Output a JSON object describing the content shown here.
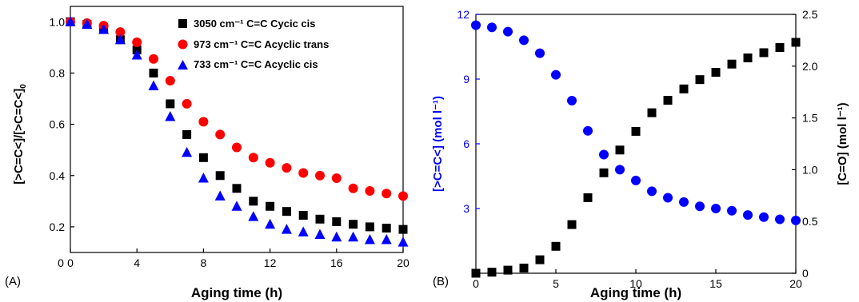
{
  "chart_data": [
    {
      "panel_label": "(A)",
      "type": "scatter",
      "xlabel": "Aging time (h)",
      "ylabel": "[>C=C<]/[>C=C<]",
      "ylabel_subscript": "0",
      "xlim": [
        0,
        20
      ],
      "ylim": [
        0.1,
        1.06
      ],
      "x_ticks": [
        "0",
        "4",
        "8",
        "12",
        "16",
        "20"
      ],
      "y_ticks": [
        "0.2",
        "0.4",
        "0.6",
        "0.8",
        "1.0"
      ],
      "grid": false,
      "legend_position": "top-right",
      "series": [
        {
          "name": "3050 cm⁻¹ C=C Cycic cis",
          "marker": "square",
          "color": "#000000",
          "x": [
            0,
            1,
            2,
            3,
            4,
            5,
            6,
            7,
            8,
            9,
            10,
            11,
            12,
            13,
            14,
            15,
            16,
            17,
            18,
            19,
            20
          ],
          "y": [
            1.0,
            0.99,
            0.97,
            0.93,
            0.89,
            0.8,
            0.68,
            0.56,
            0.47,
            0.4,
            0.35,
            0.3,
            0.28,
            0.26,
            0.245,
            0.23,
            0.22,
            0.21,
            0.2,
            0.195,
            0.19
          ]
        },
        {
          "name": "973 cm⁻¹ C=C Acyclic trans",
          "marker": "circle",
          "color": "#ff0000",
          "x": [
            0,
            1,
            2,
            3,
            4,
            5,
            6,
            7,
            8,
            9,
            10,
            11,
            12,
            13,
            14,
            15,
            16,
            17,
            18,
            19,
            20
          ],
          "y": [
            1.0,
            0.995,
            0.985,
            0.96,
            0.92,
            0.855,
            0.77,
            0.68,
            0.61,
            0.56,
            0.51,
            0.47,
            0.45,
            0.43,
            0.41,
            0.4,
            0.39,
            0.35,
            0.34,
            0.33,
            0.32
          ]
        },
        {
          "name": "733 cm⁻¹ C=C Acyclic cis",
          "marker": "triangle",
          "color": "#0000ff",
          "x": [
            0,
            1,
            2,
            3,
            4,
            5,
            6,
            7,
            8,
            9,
            10,
            11,
            12,
            13,
            14,
            15,
            16,
            17,
            18,
            19,
            20
          ],
          "y": [
            1.0,
            0.99,
            0.97,
            0.93,
            0.87,
            0.75,
            0.63,
            0.49,
            0.39,
            0.32,
            0.28,
            0.24,
            0.21,
            0.19,
            0.18,
            0.17,
            0.16,
            0.16,
            0.15,
            0.15,
            0.14
          ]
        }
      ]
    },
    {
      "panel_label": "(B)",
      "type": "scatter",
      "xlabel": "Aging time (h)",
      "ylabel_left": "[>C=C<] (mol l⁻¹)",
      "ylabel_right": "[C=O] (mol l⁻¹)",
      "xlim": [
        0,
        20
      ],
      "ylim_left": [
        0,
        12
      ],
      "ylim_right": [
        0,
        2.5
      ],
      "x_ticks": [
        "0",
        "5",
        "10",
        "15",
        "20"
      ],
      "y_ticks_left": [
        "3",
        "6",
        "9",
        "12"
      ],
      "y_ticks_right": [
        "0",
        "0.5",
        "1.0",
        "1.5",
        "2.0",
        "2.5"
      ],
      "grid": false,
      "series": [
        {
          "axis": "left",
          "marker": "circle",
          "color": "#0000ff",
          "x": [
            0,
            1,
            2,
            3,
            4,
            5,
            6,
            7,
            8,
            9,
            10,
            11,
            12,
            13,
            14,
            15,
            16,
            17,
            18,
            19,
            20
          ],
          "y": [
            11.5,
            11.4,
            11.2,
            10.8,
            10.2,
            9.2,
            8.0,
            6.6,
            5.5,
            4.8,
            4.3,
            3.8,
            3.5,
            3.3,
            3.1,
            3.0,
            2.9,
            2.7,
            2.6,
            2.5,
            2.45
          ]
        },
        {
          "axis": "right",
          "marker": "square",
          "color": "#000000",
          "x": [
            0,
            1,
            2,
            3,
            4,
            5,
            6,
            7,
            8,
            9,
            10,
            11,
            12,
            13,
            14,
            15,
            16,
            17,
            18,
            19,
            20
          ],
          "y": [
            0.0,
            0.01,
            0.03,
            0.05,
            0.13,
            0.26,
            0.47,
            0.73,
            0.97,
            1.19,
            1.37,
            1.55,
            1.67,
            1.78,
            1.87,
            1.94,
            2.02,
            2.08,
            2.13,
            2.18,
            2.23
          ]
        }
      ]
    }
  ]
}
